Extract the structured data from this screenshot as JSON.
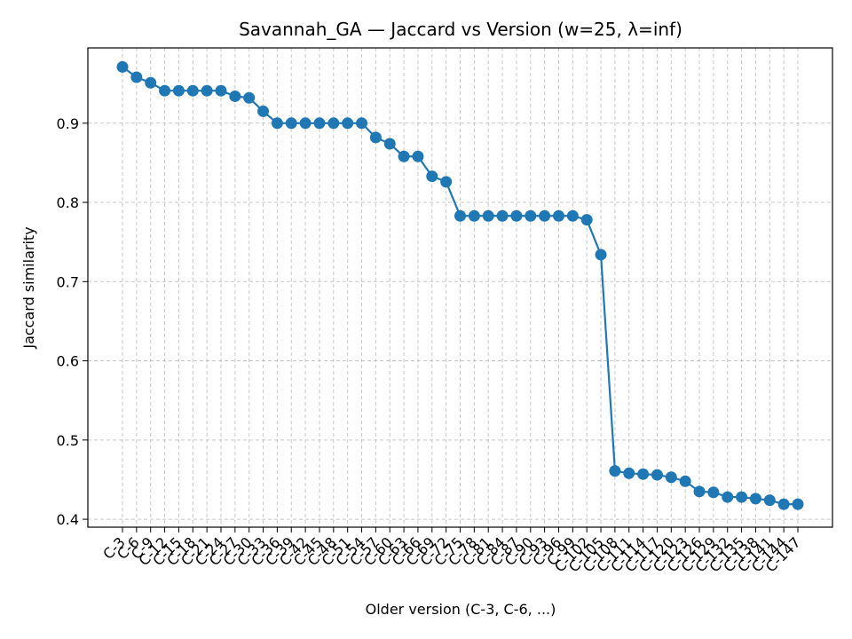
{
  "chart_data": {
    "type": "line",
    "title": "Savannah_GA — Jaccard vs Version (w=25, λ=inf)",
    "xlabel": "Older version (C-3, C-6, ...)",
    "ylabel": "Jaccard similarity",
    "ylim": [
      0.39,
      0.995
    ],
    "yticks": [
      0.4,
      0.5,
      0.6,
      0.7,
      0.8,
      0.9
    ],
    "grid": true,
    "categories": [
      "C-3",
      "C-6",
      "C-9",
      "C-12",
      "C-15",
      "C-18",
      "C-21",
      "C-24",
      "C-27",
      "C-30",
      "C-33",
      "C-36",
      "C-39",
      "C-42",
      "C-45",
      "C-48",
      "C-51",
      "C-54",
      "C-57",
      "C-60",
      "C-63",
      "C-66",
      "C-69",
      "C-72",
      "C-75",
      "C-78",
      "C-81",
      "C-84",
      "C-87",
      "C-90",
      "C-93",
      "C-96",
      "C-99",
      "C-102",
      "C-105",
      "C-108",
      "C-111",
      "C-114",
      "C-117",
      "C-120",
      "C-123",
      "C-126",
      "C-129",
      "C-132",
      "C-135",
      "C-138",
      "C-141",
      "C-144",
      "C-147"
    ],
    "series": [
      {
        "color": "#1f77b4",
        "values": [
          0.971,
          0.958,
          0.951,
          0.941,
          0.941,
          0.941,
          0.941,
          0.941,
          0.934,
          0.932,
          0.915,
          0.9,
          0.9,
          0.9,
          0.9,
          0.9,
          0.9,
          0.9,
          0.882,
          0.874,
          0.858,
          0.858,
          0.833,
          0.826,
          0.783,
          0.783,
          0.783,
          0.783,
          0.783,
          0.783,
          0.783,
          0.783,
          0.783,
          0.778,
          0.734,
          0.461,
          0.458,
          0.457,
          0.456,
          0.453,
          0.448,
          0.435,
          0.434,
          0.428,
          0.428,
          0.426,
          0.424,
          0.419,
          0.419
        ]
      }
    ]
  }
}
